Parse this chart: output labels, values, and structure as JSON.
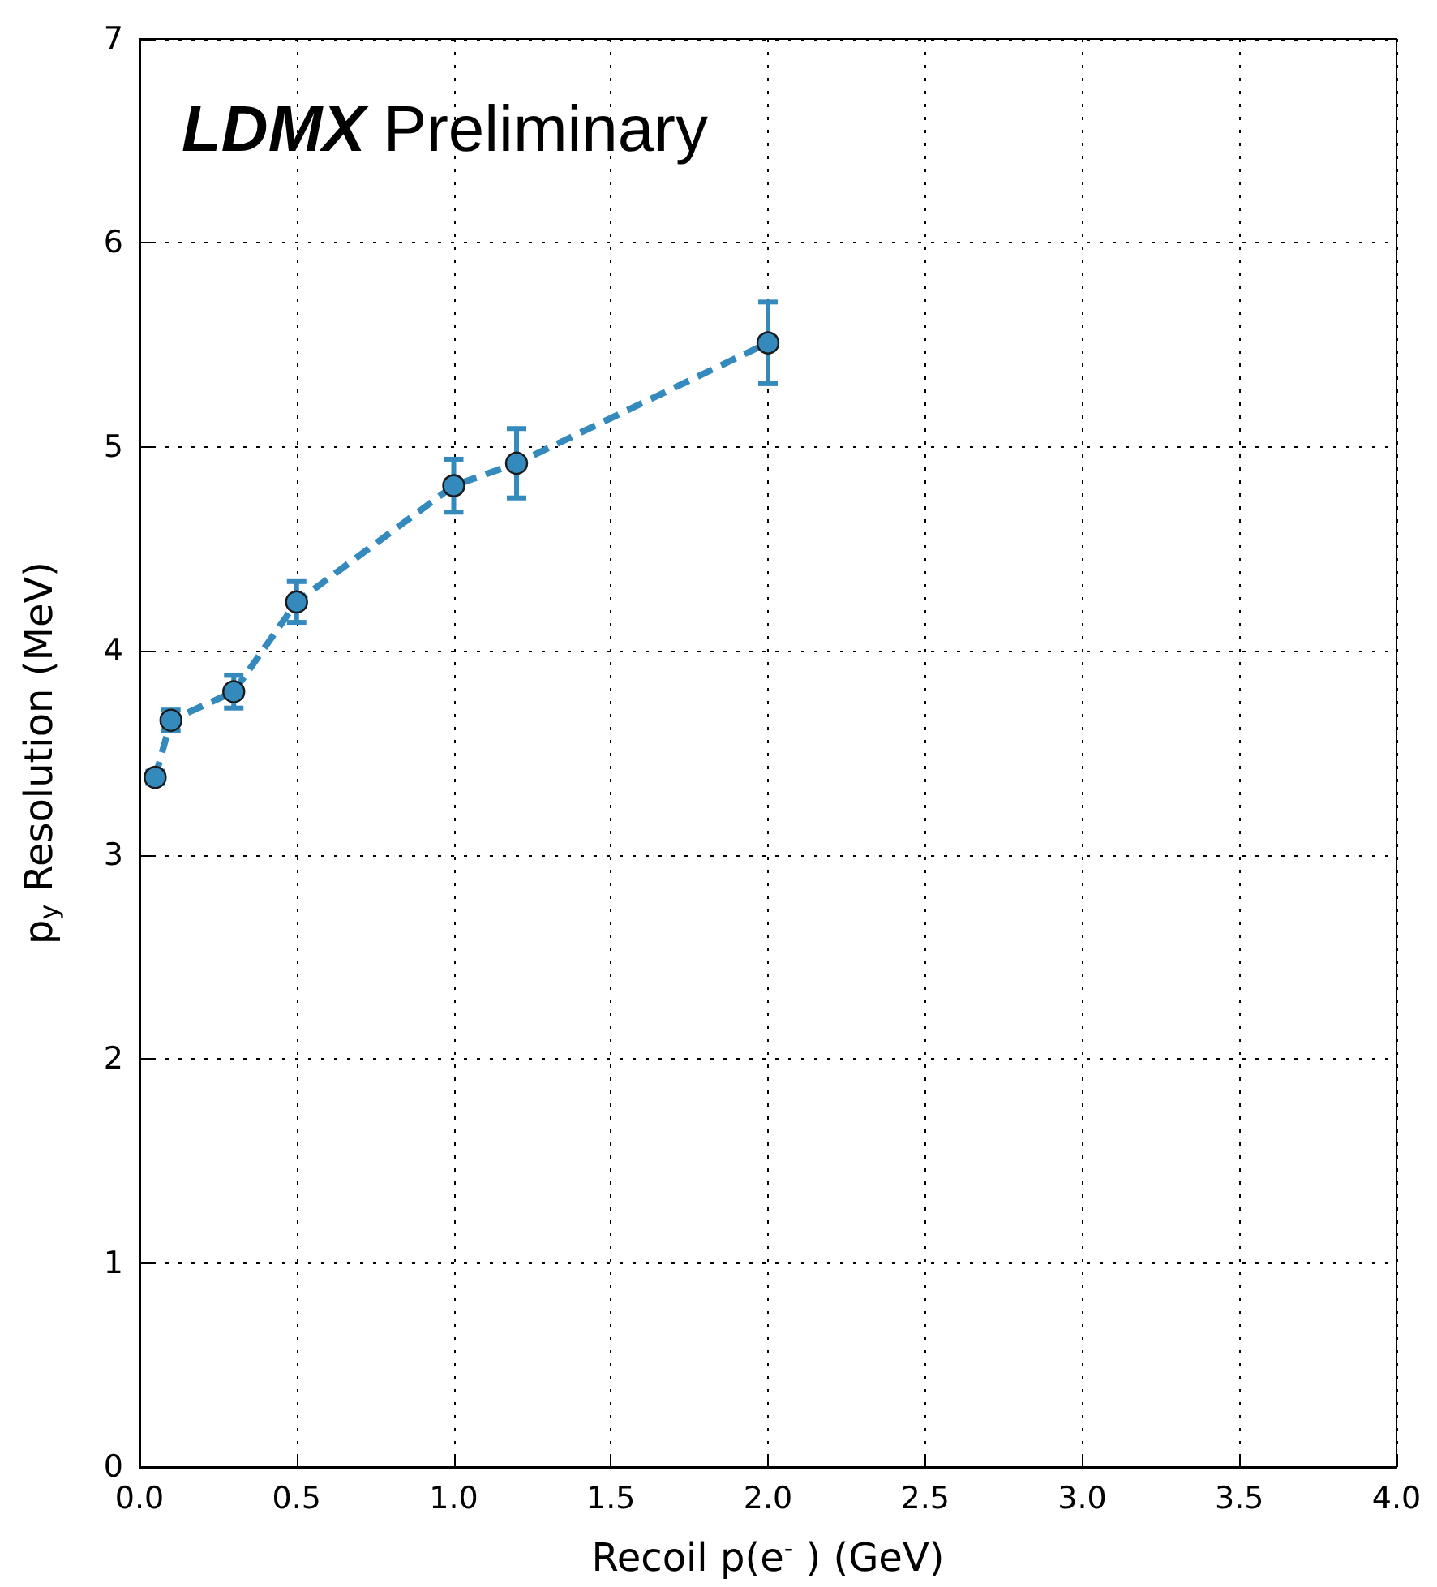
{
  "chart_data": {
    "type": "line",
    "xlabel": "Recoil p(e$^{-}$ ) (GeV)",
    "ylabel": "p$_{y}$ Resolution (MeV)",
    "annotations": [
      "LDMX Preliminary"
    ],
    "x": [
      0.05,
      0.1,
      0.3,
      0.5,
      1.0,
      1.2,
      2.0
    ],
    "series": [
      {
        "color": "#348abd",
        "values": [
          3.38,
          3.66,
          3.8,
          4.24,
          4.81,
          4.92,
          5.51
        ],
        "errors": [
          0.03,
          0.05,
          0.08,
          0.1,
          0.13,
          0.17,
          0.2
        ]
      }
    ],
    "xlim": [
      0,
      4
    ],
    "ylim": [
      0,
      7
    ],
    "xticks": [
      {
        "value": 0,
        "label": "0.0"
      },
      {
        "value": 0.5,
        "label": "0.5"
      },
      {
        "value": 1,
        "label": "1.0"
      },
      {
        "value": 1.5,
        "label": "1.5"
      },
      {
        "value": 2,
        "label": "2.0"
      },
      {
        "value": 2.5,
        "label": "2.5"
      },
      {
        "value": 3,
        "label": "3.0"
      },
      {
        "value": 3.5,
        "label": "3.5"
      },
      {
        "value": 4,
        "label": "4.0"
      }
    ],
    "yticks": [
      0,
      1,
      2,
      3,
      4,
      5,
      6,
      7
    ],
    "grid": true,
    "marker": "circle",
    "line_style": "dashed"
  }
}
